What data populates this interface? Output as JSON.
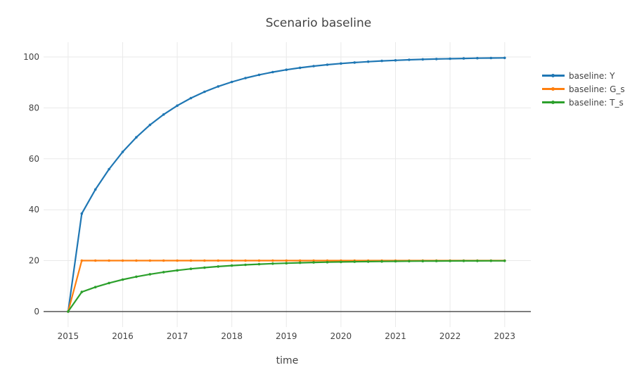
{
  "chart_data": {
    "type": "line",
    "mode": "lines+markers",
    "title": "Scenario baseline",
    "xlabel": "time",
    "ylabel": "",
    "grid": true,
    "legend_position": "right",
    "x": [
      2015.0,
      2015.25,
      2015.5,
      2015.75,
      2016.0,
      2016.25,
      2016.5,
      2016.75,
      2017.0,
      2017.25,
      2017.5,
      2017.75,
      2018.0,
      2018.25,
      2018.5,
      2018.75,
      2019.0,
      2019.25,
      2019.5,
      2019.75,
      2020.0,
      2020.25,
      2020.5,
      2020.75,
      2021.0,
      2021.25,
      2021.5,
      2021.75,
      2022.0,
      2022.25,
      2022.5,
      2022.75,
      2023.0
    ],
    "series": [
      {
        "name": "baseline: Y",
        "color": "#1f77b4",
        "values": [
          0,
          38.46,
          47.93,
          55.94,
          62.72,
          68.45,
          73.31,
          77.41,
          80.89,
          83.83,
          86.32,
          88.42,
          90.2,
          91.71,
          92.99,
          94.06,
          94.98,
          95.75,
          96.4,
          96.96,
          97.43,
          97.82,
          98.16,
          98.44,
          98.68,
          98.88,
          99.06,
          99.2,
          99.32,
          99.43,
          99.52,
          99.59,
          99.65
        ]
      },
      {
        "name": "baseline: G_s",
        "color": "#ff7f0e",
        "values": [
          0,
          20,
          20,
          20,
          20,
          20,
          20,
          20,
          20,
          20,
          20,
          20,
          20,
          20,
          20,
          20,
          20,
          20,
          20,
          20,
          20,
          20,
          20,
          20,
          20,
          20,
          20,
          20,
          20,
          20,
          20,
          20,
          20
        ]
      },
      {
        "name": "baseline: T_s",
        "color": "#2ca02c",
        "values": [
          0,
          7.69,
          9.59,
          11.19,
          12.54,
          13.69,
          14.66,
          15.48,
          16.18,
          16.77,
          17.26,
          17.68,
          18.04,
          18.34,
          18.6,
          18.81,
          19.0,
          19.15,
          19.28,
          19.39,
          19.49,
          19.56,
          19.63,
          19.69,
          19.74,
          19.78,
          19.81,
          19.84,
          19.86,
          19.89,
          19.9,
          19.92,
          19.93
        ]
      }
    ],
    "xticks": [
      2015,
      2016,
      2017,
      2018,
      2019,
      2020,
      2021,
      2022,
      2023
    ],
    "yticks": [
      0,
      20,
      40,
      60,
      80,
      100
    ],
    "xlim": [
      2014.55,
      2023.48
    ],
    "ylim": [
      -6.1,
      105.8
    ],
    "colors": {
      "text": "#444444",
      "grid": "#e9e9e9",
      "zeroline": "#444444",
      "background": "#ffffff"
    }
  }
}
